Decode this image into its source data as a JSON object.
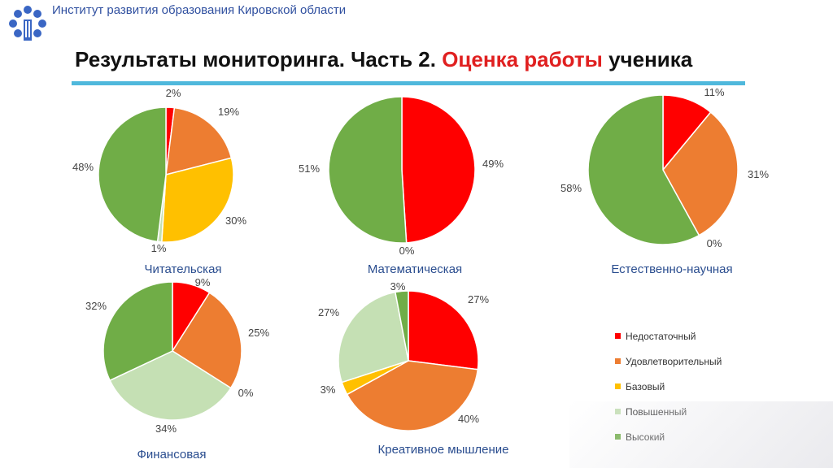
{
  "header": {
    "org": "Институт развития образования Кировской области",
    "title_part1": "Результаты мониторинга. Часть 2.",
    "title_accent": "Оценка работы",
    "title_part2": "ученика"
  },
  "colors": {
    "accent_red": "#e02020",
    "rule_blue": "#4fb8dc",
    "org_blue": "#3050a0",
    "category_label": "#2a4d8f"
  },
  "chart_data": [
    {
      "type": "pie",
      "title": "Читательская",
      "categories": [
        "Недостаточный",
        "Удовлетворительный",
        "Базовый",
        "Повышенный",
        "Высокий"
      ],
      "values": [
        2,
        19,
        30,
        1,
        48
      ],
      "labels": [
        "2%",
        "19%",
        "30%",
        "1%",
        "48%"
      ]
    },
    {
      "type": "pie",
      "title": "Математическая",
      "categories": [
        "Недостаточный",
        "Удовлетворительный",
        "Базовый",
        "Повышенный",
        "Высокий"
      ],
      "values": [
        49,
        0,
        0,
        0,
        51
      ],
      "labels": [
        "49%",
        "0%",
        "",
        "",
        "51%"
      ]
    },
    {
      "type": "pie",
      "title": "Естественно-научная",
      "categories": [
        "Недостаточный",
        "Удовлетворительный",
        "Базовый",
        "Повышенный",
        "Высокий"
      ],
      "values": [
        11,
        31,
        0,
        0,
        58
      ],
      "labels": [
        "11%",
        "31%",
        "0%",
        "",
        "58%"
      ]
    },
    {
      "type": "pie",
      "title": "Финансовая",
      "categories": [
        "Недостаточный",
        "Удовлетворительный",
        "Базовый",
        "Повышенный",
        "Высокий"
      ],
      "values": [
        9,
        25,
        0,
        34,
        32
      ],
      "labels": [
        "9%",
        "25%",
        "0%",
        "34%",
        "32%"
      ]
    },
    {
      "type": "pie",
      "title": "Креативное мышление",
      "categories": [
        "Недостаточный",
        "Удовлетворительный",
        "Базовый",
        "Повышенный",
        "Высокий"
      ],
      "values": [
        27,
        40,
        3,
        27,
        3
      ],
      "labels": [
        "27%",
        "40%",
        "3%",
        "27%",
        "3%"
      ]
    }
  ],
  "legend": {
    "placement": "bottom-right",
    "items": [
      {
        "label": "Недостаточный",
        "color": "#ff0000"
      },
      {
        "label": "Удовлетворительный",
        "color": "#ed7d31"
      },
      {
        "label": "Базовый",
        "color": "#ffc000"
      },
      {
        "label": "Повышенный",
        "color": "#c5e0b4"
      },
      {
        "label": "Высокий",
        "color": "#70ad47"
      }
    ]
  }
}
